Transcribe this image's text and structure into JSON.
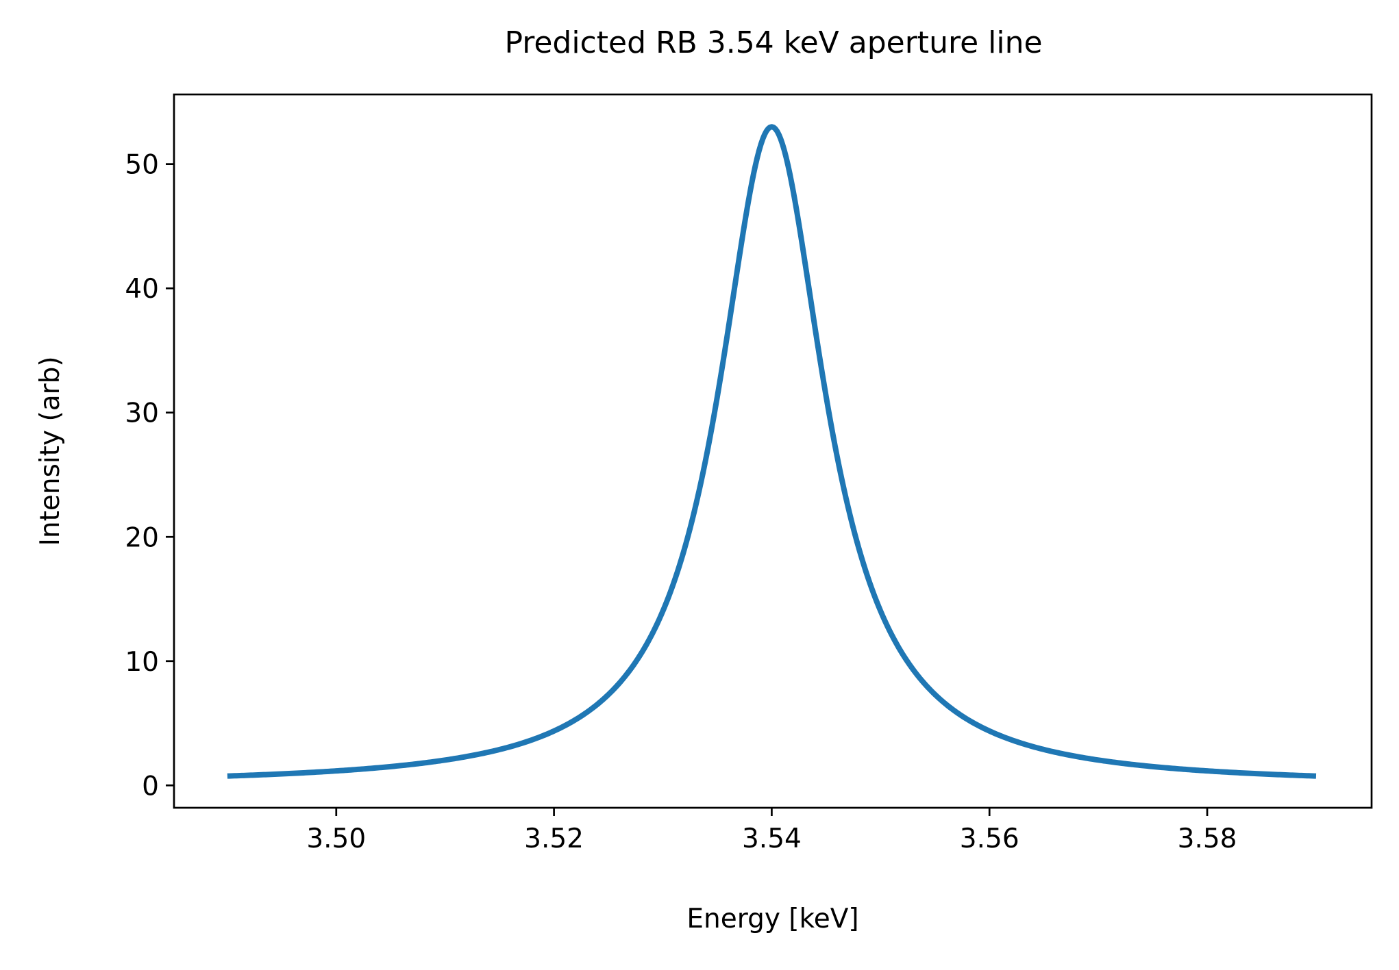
{
  "chart_data": {
    "type": "line",
    "title": "Predicted RB 3.54 keV aperture line",
    "xlabel": "Energy [keV]",
    "ylabel": "Intensity (arb)",
    "xlim": [
      3.4851,
      3.5951
    ],
    "ylim": [
      -1.8,
      55.6
    ],
    "xticks": [
      3.5,
      3.52,
      3.54,
      3.56,
      3.58
    ],
    "xtick_labels": [
      "3.50",
      "3.52",
      "3.54",
      "3.56",
      "3.58"
    ],
    "yticks": [
      0,
      10,
      20,
      30,
      40,
      50
    ],
    "ytick_labels": [
      "0",
      "10",
      "20",
      "30",
      "40",
      "50"
    ],
    "grid": false,
    "legend": "none",
    "series": [
      {
        "color": "#1f77b4",
        "shape": "lorentzian",
        "center": 3.54,
        "peak": 53.0,
        "fwhm": 0.012,
        "x_range": [
          3.49,
          3.59
        ],
        "sample_points": [
          {
            "x": 3.49,
            "y": 0.8
          },
          {
            "x": 3.5,
            "y": 1.2
          },
          {
            "x": 3.51,
            "y": 2.0
          },
          {
            "x": 3.52,
            "y": 4.3
          },
          {
            "x": 3.53,
            "y": 14.9
          },
          {
            "x": 3.535,
            "y": 32.6
          },
          {
            "x": 3.54,
            "y": 53.0
          },
          {
            "x": 3.545,
            "y": 32.6
          },
          {
            "x": 3.55,
            "y": 14.9
          },
          {
            "x": 3.56,
            "y": 4.3
          },
          {
            "x": 3.57,
            "y": 2.0
          },
          {
            "x": 3.58,
            "y": 1.2
          },
          {
            "x": 3.59,
            "y": 0.8
          }
        ]
      }
    ]
  }
}
